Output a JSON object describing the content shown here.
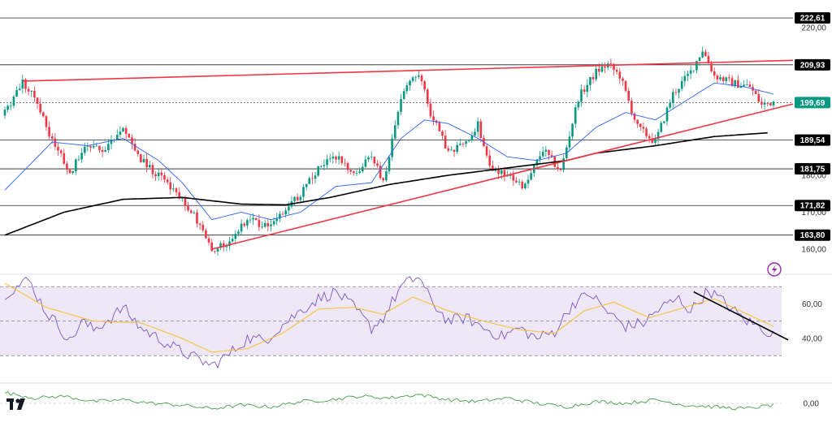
{
  "colors": {
    "bull": "#089981",
    "bear": "#f23645",
    "ma50": "#2962ff",
    "ma200": "#000000",
    "trend": "#f23645",
    "rsi_line": "#7e57c2",
    "rsi_ma": "#fbc02d",
    "rsi_band": "#ede7f6",
    "momentum": "#43a047",
    "level_badge": "#000000",
    "price_badge": "#089981"
  },
  "icons": [
    "lightning-icon",
    "tradingview-logo-icon"
  ],
  "chart_data": [
    {
      "type": "candlestick",
      "title": "",
      "ylim": [
        152,
        225
      ],
      "y_ticks": [
        {
          "value": 220,
          "label": "220,00"
        },
        {
          "value": 180,
          "label": "180,00"
        },
        {
          "value": 170,
          "label": "170,00"
        },
        {
          "value": 160,
          "label": "160,00"
        }
      ],
      "levels": [
        {
          "value": 222.61,
          "label": "222,61"
        },
        {
          "value": 209.93,
          "label": "209,93"
        },
        {
          "value": 199.69,
          "label": "199,69",
          "dashed": true
        },
        {
          "value": 189.54,
          "label": "189,54"
        },
        {
          "value": 181.75,
          "label": "181,75"
        },
        {
          "value": 171.82,
          "label": "171,82"
        },
        {
          "value": 163.8,
          "label": "163,80"
        }
      ],
      "last_price": {
        "value": 199.69,
        "label": "199,69"
      },
      "anchors": [
        [
          0,
          197,
          1
        ],
        [
          6,
          205,
          1
        ],
        [
          10,
          202,
          0
        ],
        [
          16,
          189,
          0
        ],
        [
          22,
          181,
          0
        ],
        [
          28,
          188,
          1
        ],
        [
          34,
          187,
          0
        ],
        [
          40,
          193,
          1
        ],
        [
          46,
          184,
          0
        ],
        [
          52,
          180,
          0
        ],
        [
          58,
          175,
          0
        ],
        [
          64,
          169,
          0
        ],
        [
          70,
          160,
          0
        ],
        [
          76,
          162,
          1
        ],
        [
          82,
          168,
          1
        ],
        [
          88,
          166,
          0
        ],
        [
          94,
          170,
          1
        ],
        [
          100,
          175,
          1
        ],
        [
          106,
          182,
          1
        ],
        [
          112,
          185,
          1
        ],
        [
          118,
          180,
          0
        ],
        [
          124,
          185,
          1
        ],
        [
          128,
          178,
          0
        ],
        [
          134,
          201,
          1
        ],
        [
          140,
          208,
          1
        ],
        [
          144,
          197,
          0
        ],
        [
          150,
          186,
          0
        ],
        [
          156,
          189,
          1
        ],
        [
          160,
          194,
          1
        ],
        [
          164,
          182,
          0
        ],
        [
          170,
          180,
          0
        ],
        [
          176,
          177,
          0
        ],
        [
          182,
          187,
          1
        ],
        [
          188,
          181,
          0
        ],
        [
          194,
          201,
          1
        ],
        [
          200,
          208,
          1
        ],
        [
          204,
          210,
          1
        ],
        [
          208,
          207,
          0
        ],
        [
          214,
          193,
          0
        ],
        [
          220,
          189,
          0
        ],
        [
          226,
          202,
          1
        ],
        [
          232,
          208,
          1
        ],
        [
          236,
          214,
          1
        ],
        [
          240,
          207,
          0
        ],
        [
          246,
          205,
          0
        ],
        [
          252,
          204,
          0
        ],
        [
          256,
          199,
          0
        ],
        [
          260,
          200,
          1
        ]
      ],
      "ma50_anchors": [
        [
          0,
          176
        ],
        [
          16,
          189
        ],
        [
          28,
          188
        ],
        [
          40,
          190
        ],
        [
          52,
          184
        ],
        [
          60,
          178
        ],
        [
          70,
          168
        ],
        [
          80,
          170
        ],
        [
          90,
          168
        ],
        [
          100,
          170
        ],
        [
          112,
          177
        ],
        [
          124,
          178
        ],
        [
          134,
          190
        ],
        [
          142,
          195
        ],
        [
          150,
          194
        ],
        [
          160,
          190
        ],
        [
          170,
          185
        ],
        [
          180,
          184
        ],
        [
          190,
          186
        ],
        [
          200,
          193
        ],
        [
          210,
          197
        ],
        [
          220,
          195
        ],
        [
          230,
          200
        ],
        [
          240,
          205
        ],
        [
          250,
          204
        ],
        [
          260,
          202
        ]
      ],
      "ma200_anchors": [
        [
          0,
          163.8
        ],
        [
          20,
          170
        ],
        [
          40,
          173.5
        ],
        [
          60,
          174
        ],
        [
          80,
          172.2
        ],
        [
          95,
          172
        ],
        [
          110,
          174
        ],
        [
          130,
          177.5
        ],
        [
          150,
          180
        ],
        [
          170,
          182
        ],
        [
          190,
          184
        ],
        [
          200,
          186
        ],
        [
          220,
          188
        ],
        [
          240,
          190.5
        ],
        [
          258,
          191.5
        ]
      ],
      "trendlines": [
        {
          "from": [
            6,
            205.5
          ],
          "to": [
            260,
            211
          ]
        },
        {
          "from": [
            70,
            160
          ],
          "to": [
            260,
            198
          ]
        }
      ]
    },
    {
      "type": "line",
      "title": "",
      "ylim": [
        22,
        78
      ],
      "band": [
        30,
        70
      ],
      "midline": 50,
      "y_ticks": [
        {
          "value": 60,
          "label": "60,00"
        },
        {
          "value": 40,
          "label": "40,00"
        }
      ],
      "rsi_anchors": [
        [
          0,
          66
        ],
        [
          8,
          74
        ],
        [
          14,
          55
        ],
        [
          18,
          48
        ],
        [
          22,
          38
        ],
        [
          26,
          50
        ],
        [
          30,
          45
        ],
        [
          36,
          52
        ],
        [
          40,
          58
        ],
        [
          46,
          46
        ],
        [
          52,
          40
        ],
        [
          58,
          34
        ],
        [
          64,
          29
        ],
        [
          70,
          24
        ],
        [
          76,
          31
        ],
        [
          82,
          40
        ],
        [
          88,
          39
        ],
        [
          94,
          48
        ],
        [
          100,
          56
        ],
        [
          106,
          63
        ],
        [
          112,
          67
        ],
        [
          118,
          58
        ],
        [
          124,
          46
        ],
        [
          128,
          52
        ],
        [
          134,
          70
        ],
        [
          140,
          76
        ],
        [
          144,
          62
        ],
        [
          150,
          50
        ],
        [
          156,
          52
        ],
        [
          162,
          46
        ],
        [
          168,
          41
        ],
        [
          174,
          46
        ],
        [
          180,
          40
        ],
        [
          186,
          44
        ],
        [
          192,
          60
        ],
        [
          198,
          66
        ],
        [
          204,
          55
        ],
        [
          210,
          47
        ],
        [
          216,
          49
        ],
        [
          222,
          58
        ],
        [
          228,
          63
        ],
        [
          232,
          56
        ],
        [
          238,
          68
        ],
        [
          244,
          60
        ],
        [
          250,
          51
        ],
        [
          256,
          46
        ],
        [
          260,
          42
        ]
      ],
      "rsi_ma_anchors": [
        [
          0,
          72
        ],
        [
          14,
          58
        ],
        [
          30,
          50
        ],
        [
          46,
          49
        ],
        [
          60,
          40
        ],
        [
          70,
          32
        ],
        [
          82,
          34
        ],
        [
          94,
          43
        ],
        [
          106,
          57
        ],
        [
          118,
          58
        ],
        [
          128,
          54
        ],
        [
          138,
          64
        ],
        [
          150,
          56
        ],
        [
          162,
          50
        ],
        [
          174,
          45
        ],
        [
          186,
          43
        ],
        [
          196,
          56
        ],
        [
          206,
          61
        ],
        [
          218,
          52
        ],
        [
          230,
          58
        ],
        [
          240,
          63
        ],
        [
          250,
          55
        ],
        [
          260,
          47
        ]
      ],
      "trendline": {
        "from": [
          233,
          67
        ],
        "to": [
          260,
          41
        ]
      }
    },
    {
      "type": "line",
      "title": "",
      "ylim": [
        -10,
        10
      ],
      "zero_label": "0,00",
      "anchors": [
        [
          0,
          6
        ],
        [
          10,
          3
        ],
        [
          20,
          4
        ],
        [
          30,
          1
        ],
        [
          40,
          2
        ],
        [
          50,
          0
        ],
        [
          60,
          -1
        ],
        [
          70,
          -3
        ],
        [
          80,
          -1
        ],
        [
          90,
          -2
        ],
        [
          100,
          1
        ],
        [
          110,
          2
        ],
        [
          120,
          4
        ],
        [
          130,
          3
        ],
        [
          140,
          5
        ],
        [
          150,
          2
        ],
        [
          160,
          1
        ],
        [
          170,
          3
        ],
        [
          180,
          0
        ],
        [
          190,
          -2
        ],
        [
          200,
          1
        ],
        [
          210,
          0
        ],
        [
          220,
          2
        ],
        [
          230,
          -1
        ],
        [
          240,
          -2
        ],
        [
          250,
          -3
        ],
        [
          260,
          -1
        ]
      ]
    }
  ]
}
